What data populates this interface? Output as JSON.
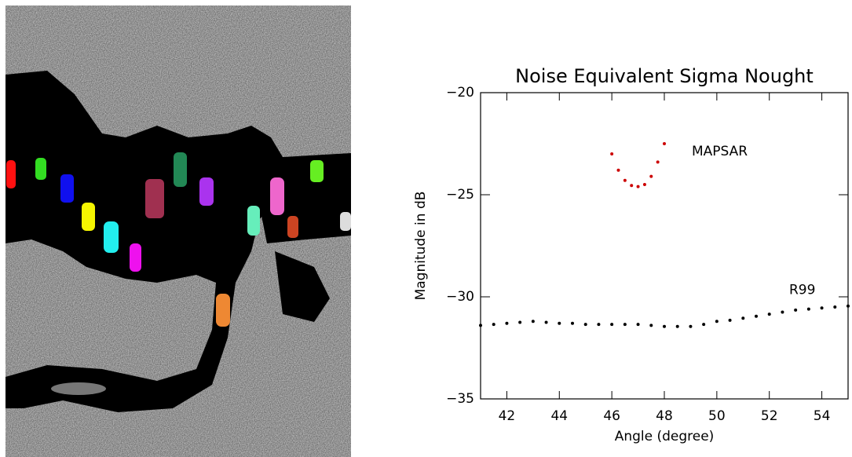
{
  "chart_data": {
    "type": "scatter_line",
    "title": "Noise Equivalent Sigma Nought",
    "xlabel": "Angle (degree)",
    "ylabel": "Magnitude in dB",
    "xlim": [
      41,
      55
    ],
    "ylim": [
      -35,
      -20
    ],
    "xticks": [
      42,
      44,
      46,
      48,
      50,
      52,
      54
    ],
    "yticks": [
      {
        "value": -35,
        "label": "−35"
      },
      {
        "value": -30,
        "label": "−30"
      },
      {
        "value": -25,
        "label": "−25"
      },
      {
        "value": -20,
        "label": "−20"
      }
    ],
    "series": [
      {
        "name": "MAPSAR",
        "color": "#cc0000",
        "x": [
          46,
          46.25,
          46.5,
          46.75,
          47,
          47.25,
          47.5,
          47.75,
          48
        ],
        "values": [
          -23.0,
          -23.8,
          -24.3,
          -24.55,
          -24.6,
          -24.5,
          -24.1,
          -23.4,
          -22.5
        ]
      },
      {
        "name": "R99",
        "color": "#000000",
        "x": [
          41,
          41.5,
          42,
          42.5,
          43,
          43.5,
          44,
          44.5,
          45,
          45.5,
          46,
          46.5,
          47,
          47.5,
          48,
          48.5,
          49,
          49.5,
          50,
          50.5,
          51,
          51.5,
          52,
          52.5,
          53,
          53.5,
          54,
          54.5,
          55
        ],
        "values": [
          -31.4,
          -31.35,
          -31.3,
          -31.25,
          -31.2,
          -31.25,
          -31.3,
          -31.3,
          -31.35,
          -31.35,
          -31.35,
          -31.35,
          -31.35,
          -31.4,
          -31.45,
          -31.45,
          -31.45,
          -31.35,
          -31.2,
          -31.15,
          -31.05,
          -30.95,
          -30.85,
          -30.75,
          -30.65,
          -30.6,
          -30.55,
          -30.5,
          -30.45
        ]
      }
    ]
  }
}
